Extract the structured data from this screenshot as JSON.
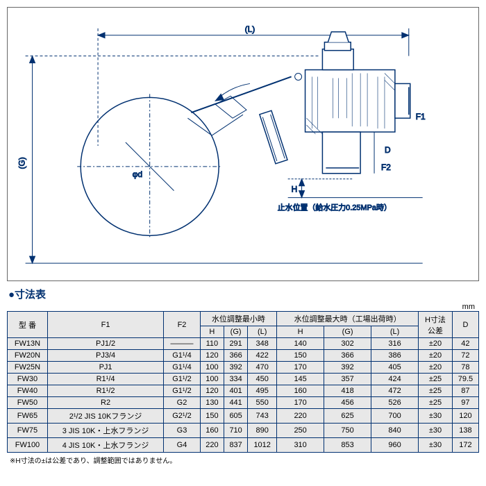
{
  "diagram": {
    "labels": {
      "L": "(L)",
      "G": "(G)",
      "D": "D",
      "H": "H",
      "phi_d": "φd",
      "F1": "F1",
      "F2": "F2",
      "stop_pos": "止水位置（給水圧力0.25MPa時）"
    },
    "colors": {
      "line": "#003070",
      "thin": "#003070",
      "text": "#000000"
    }
  },
  "table": {
    "title": "●寸法表",
    "unit": "mm",
    "footnote": "※H寸法の±は公差であり、調整範囲ではありません。",
    "columns": {
      "model": "型 番",
      "F1": "F1",
      "F2": "F2",
      "group_min": "水位調整最小時",
      "group_max": "水位調整最大時（工場出荷時）",
      "H": "H",
      "G": "(G)",
      "L": "(L)",
      "H_tol": "H寸法\n公差",
      "D": "D"
    },
    "rows": [
      {
        "model": "FW13N",
        "F1": "PJ1/2",
        "F2": "———",
        "min": {
          "H": "110",
          "G": "291",
          "L": "348"
        },
        "max": {
          "H": "140",
          "G": "302",
          "L": "316"
        },
        "Htol": "±20",
        "D": "42"
      },
      {
        "model": "FW20N",
        "F1": "PJ3/4",
        "F2": "G1¹/4",
        "min": {
          "H": "120",
          "G": "366",
          "L": "422"
        },
        "max": {
          "H": "150",
          "G": "366",
          "L": "386"
        },
        "Htol": "±20",
        "D": "72"
      },
      {
        "model": "FW25N",
        "F1": "PJ1",
        "F2": "G1¹/4",
        "min": {
          "H": "100",
          "G": "392",
          "L": "470"
        },
        "max": {
          "H": "170",
          "G": "392",
          "L": "405"
        },
        "Htol": "±20",
        "D": "78"
      },
      {
        "model": "FW30",
        "F1": "R1¹/4",
        "F2": "G1¹/2",
        "min": {
          "H": "100",
          "G": "334",
          "L": "450"
        },
        "max": {
          "H": "145",
          "G": "357",
          "L": "424"
        },
        "Htol": "±25",
        "D": "79.5"
      },
      {
        "model": "FW40",
        "F1": "R1¹/2",
        "F2": "G1¹/2",
        "min": {
          "H": "120",
          "G": "401",
          "L": "495"
        },
        "max": {
          "H": "160",
          "G": "418",
          "L": "472"
        },
        "Htol": "±25",
        "D": "87"
      },
      {
        "model": "FW50",
        "F1": "R2",
        "F2": "G2",
        "min": {
          "H": "130",
          "G": "441",
          "L": "550"
        },
        "max": {
          "H": "170",
          "G": "456",
          "L": "526"
        },
        "Htol": "±25",
        "D": "97"
      },
      {
        "model": "FW65",
        "F1": "2¹/2 JIS 10Kフランジ",
        "F2": "G2¹/2",
        "min": {
          "H": "150",
          "G": "605",
          "L": "743"
        },
        "max": {
          "H": "220",
          "G": "625",
          "L": "700"
        },
        "Htol": "±30",
        "D": "120"
      },
      {
        "model": "FW75",
        "F1": "3 JIS 10K・上水フランジ",
        "F2": "G3",
        "min": {
          "H": "160",
          "G": "710",
          "L": "890"
        },
        "max": {
          "H": "250",
          "G": "750",
          "L": "840"
        },
        "Htol": "±30",
        "D": "138"
      },
      {
        "model": "FW100",
        "F1": "4 JIS 10K・上水フランジ",
        "F2": "G4",
        "min": {
          "H": "220",
          "G": "837",
          "L": "1012"
        },
        "max": {
          "H": "310",
          "G": "853",
          "L": "960"
        },
        "Htol": "±30",
        "D": "172"
      }
    ]
  }
}
